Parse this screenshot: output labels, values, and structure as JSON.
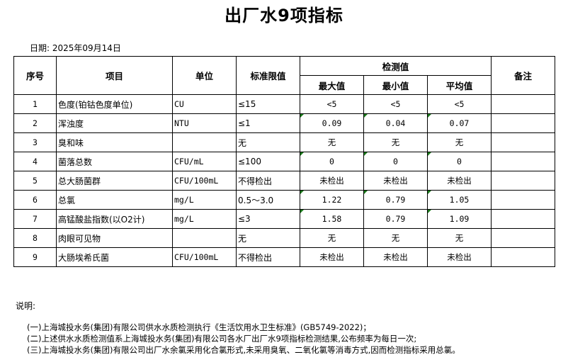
{
  "title": "出厂水9项指标",
  "date": "日期: 2025年09月14日",
  "headers": {
    "seq": "序号",
    "item": "项目",
    "unit": "单位",
    "limit": "标准限值",
    "measured": "检测值",
    "max": "最大值",
    "min": "最小值",
    "avg": "平均值",
    "remark": "备注"
  },
  "flag_color": "#1a7a1a",
  "rows": [
    {
      "seq": "1",
      "item": "色度(铂钴色度单位)",
      "unit": "CU",
      "limit": "≤15",
      "max": "<5",
      "min": "<5",
      "avg": "<5",
      "flags": [
        false,
        false,
        false
      ]
    },
    {
      "seq": "2",
      "item": "浑浊度",
      "unit": "NTU",
      "limit": "≤1",
      "max": "0.09",
      "min": "0.04",
      "avg": "0.07",
      "flags": [
        true,
        true,
        true
      ]
    },
    {
      "seq": "3",
      "item": "臭和味",
      "unit": "",
      "limit": "无",
      "max": "无",
      "min": "无",
      "avg": "无",
      "flags": [
        false,
        false,
        false
      ]
    },
    {
      "seq": "4",
      "item": "菌落总数",
      "unit": "CFU/mL",
      "limit": "≤100",
      "max": "0",
      "min": "0",
      "avg": "0",
      "flags": [
        true,
        true,
        true
      ]
    },
    {
      "seq": "5",
      "item": "总大肠菌群",
      "unit": "CFU/100mL",
      "limit": "不得检出",
      "max": "未检出",
      "min": "未检出",
      "avg": "未检出",
      "flags": [
        false,
        false,
        false
      ]
    },
    {
      "seq": "6",
      "item": "总氯",
      "unit": "mg/L",
      "limit": "0.5～3.0",
      "max": "1.22",
      "min": "0.79",
      "avg": "1.05",
      "flags": [
        true,
        true,
        true
      ]
    },
    {
      "seq": "7",
      "item": "高锰酸盐指数(以O2计)",
      "unit": "mg/L",
      "limit": "≤3",
      "max": "1.58",
      "min": "0.79",
      "avg": "1.09",
      "flags": [
        true,
        false,
        true
      ]
    },
    {
      "seq": "8",
      "item": "肉眼可见物",
      "unit": "",
      "limit": "无",
      "max": "无",
      "min": "无",
      "avg": "无",
      "flags": [
        false,
        false,
        false
      ]
    },
    {
      "seq": "9",
      "item": "大肠埃希氏菌",
      "unit": "CFU/100mL",
      "limit": "不得检出",
      "max": "未检出",
      "min": "未检出",
      "avg": "未检出",
      "flags": [
        false,
        false,
        false
      ]
    }
  ],
  "notes_label": "说明:",
  "notes": [
    "(一)上海城投水务(集团)有限公司供水水质检测执行《生活饮用水卫生标准》(GB5749-2022)；",
    "(二)上述供水水质检测值系上海城投水务(集团)有限公司各水厂出厂水9项指标检测结果,公布频率为每日一次;",
    "(三)上海城投水务(集团)有限公司出厂水余氯采用化合氯形式,未采用臭氧、二氧化氯等消毒方式,因而检测指标采用总氯。"
  ]
}
